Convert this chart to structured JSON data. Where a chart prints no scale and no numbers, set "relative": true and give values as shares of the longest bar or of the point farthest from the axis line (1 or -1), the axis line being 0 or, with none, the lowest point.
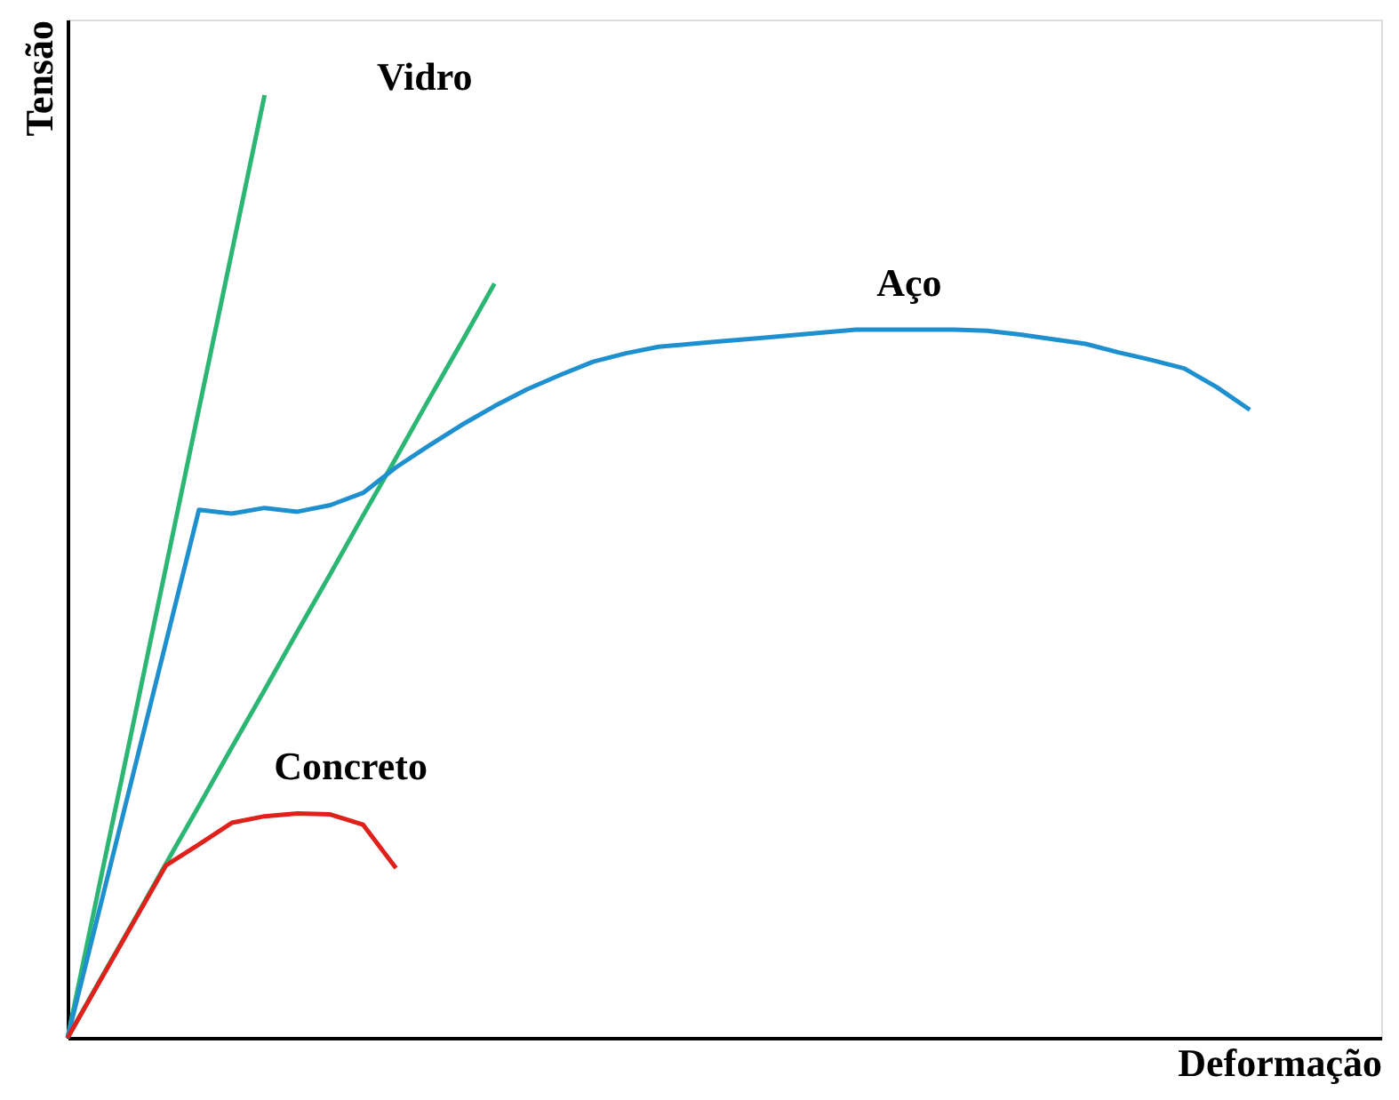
{
  "chart_data": {
    "type": "line",
    "relative": true,
    "xlabel": "Deformação",
    "ylabel": "Tensão",
    "grid": false,
    "legend": false,
    "marker": "none",
    "line_style": "solid",
    "annotations": [
      "Vidro"
    ],
    "categories": [
      null,
      null,
      null,
      null,
      null,
      null,
      null,
      null,
      null,
      null,
      null,
      null,
      null,
      null,
      null,
      null,
      null,
      null,
      null,
      null,
      null,
      null,
      null,
      null,
      null,
      null,
      null,
      null,
      null,
      null,
      null,
      null,
      null,
      null,
      null,
      null,
      null,
      null,
      null,
      null,
      null
    ],
    "series": [
      {
        "color": "#2bb673",
        "values": [
          0,
          0.167,
          0.333,
          0.5,
          0.667,
          0.833,
          1.0,
          null,
          null,
          null,
          null,
          null,
          null,
          null,
          null,
          null,
          null,
          null,
          null,
          null,
          null,
          null,
          null,
          null,
          null,
          null,
          null,
          null,
          null,
          null,
          null,
          null,
          null,
          null,
          null,
          null,
          null,
          null,
          null,
          null,
          null
        ]
      },
      {
        "color": "#2bb673",
        "values": [
          0,
          0.062,
          0.123,
          0.185,
          0.246,
          0.308,
          0.369,
          0.431,
          0.492,
          0.554,
          0.615,
          0.677,
          0.738,
          0.8,
          null,
          null,
          null,
          null,
          null,
          null,
          null,
          null,
          null,
          null,
          null,
          null,
          null,
          null,
          null,
          null,
          null,
          null,
          null,
          null,
          null,
          null,
          null,
          null,
          null,
          null,
          null
        ]
      },
      {
        "name": "Aço",
        "color": "#1f90cf",
        "values": [
          0,
          0.14,
          0.28,
          0.42,
          0.56,
          0.556,
          0.562,
          0.558,
          0.565,
          0.578,
          0.605,
          0.628,
          0.65,
          0.67,
          0.688,
          0.703,
          0.717,
          0.726,
          0.733,
          0.736,
          0.739,
          0.742,
          0.745,
          0.748,
          0.751,
          0.751,
          0.751,
          0.751,
          0.75,
          0.746,
          0.741,
          0.736,
          0.727,
          0.719,
          0.71,
          0.69,
          0.666,
          null,
          null,
          null,
          null
        ]
      },
      {
        "name": "Concreto",
        "color": "#e0201b",
        "values": [
          0,
          0.061,
          0.122,
          0.183,
          0.205,
          0.228,
          0.235,
          0.238,
          0.237,
          0.226,
          0.18,
          null,
          null,
          null,
          null,
          null,
          null,
          null,
          null,
          null,
          null,
          null,
          null,
          null,
          null,
          null,
          null,
          null,
          null,
          null,
          null,
          null,
          null,
          null,
          null,
          null,
          null,
          null,
          null,
          null,
          null
        ]
      }
    ]
  }
}
